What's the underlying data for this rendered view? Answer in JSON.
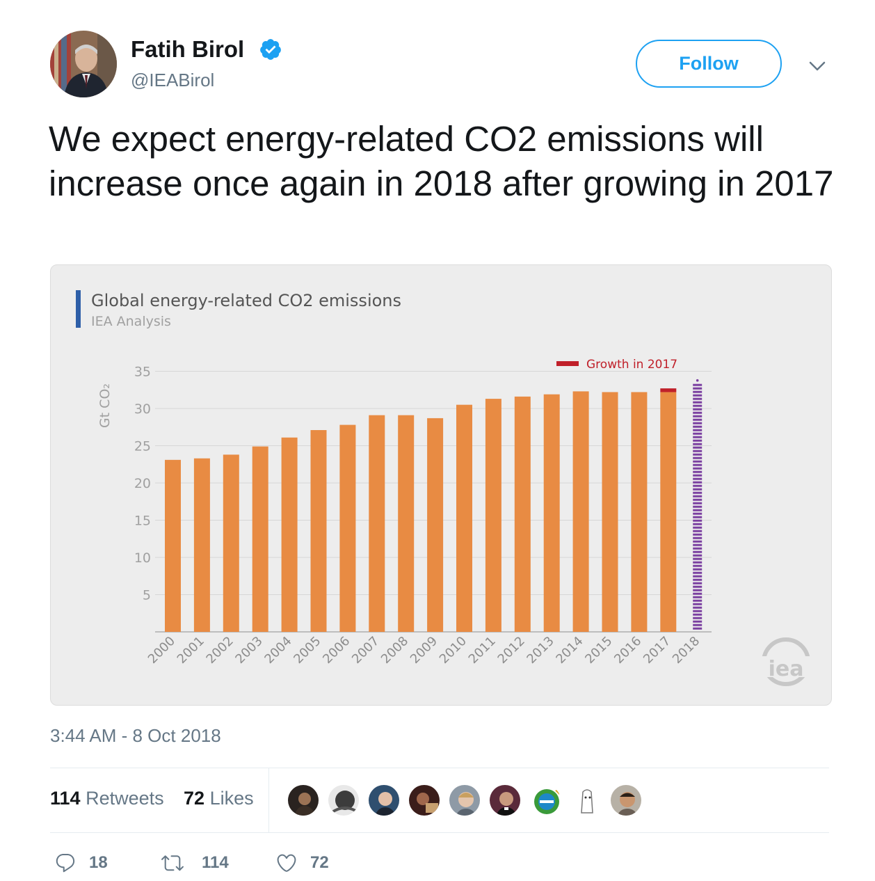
{
  "author": {
    "name": "Fatih Birol",
    "handle": "@IEABirol"
  },
  "follow_label": "Follow",
  "tweet_text": "We expect energy-related CO2 emissions will increase once again in 2018 after growing in 2017",
  "chart_data": {
    "type": "bar",
    "title": "Global energy-related CO2 emissions",
    "subtitle": "IEA Analysis",
    "ylabel": "Gt CO₂",
    "ylim": [
      0,
      35
    ],
    "yticks": [
      5,
      10,
      15,
      20,
      25,
      30,
      35
    ],
    "categories": [
      "2000",
      "2001",
      "2002",
      "2003",
      "2004",
      "2005",
      "2006",
      "2007",
      "2008",
      "2009",
      "2010",
      "2011",
      "2012",
      "2013",
      "2014",
      "2015",
      "2016",
      "2017",
      "2018"
    ],
    "series": [
      {
        "values": [
          23.1,
          23.3,
          23.8,
          24.9,
          26.1,
          27.1,
          27.8,
          29.1,
          29.1,
          28.7,
          30.5,
          31.3,
          31.6,
          31.9,
          32.3,
          32.2,
          32.2,
          32.2,
          null
        ],
        "color": "#e88b43"
      },
      {
        "name": "Growth in 2017",
        "values": [
          null,
          null,
          null,
          null,
          null,
          null,
          null,
          null,
          null,
          null,
          null,
          null,
          null,
          null,
          null,
          null,
          null,
          0.5,
          null
        ],
        "color": "#c0202a"
      }
    ],
    "projection_2018": {
      "value": 33.3,
      "color": "#7a3fa0",
      "style": "dotted"
    },
    "legend": "top-right",
    "grid": true,
    "logo": "iea"
  },
  "timestamp": "3:44 AM - 8 Oct 2018",
  "stats": {
    "retweets_count": "114",
    "retweets_label": "Retweets",
    "likes_count": "72",
    "likes_label": "Likes"
  },
  "actions": {
    "replies": "18",
    "retweets": "114",
    "likes": "72"
  },
  "colors": {
    "accent": "#1da1f2",
    "secondary_text": "#657786",
    "bar": "#e88b43",
    "growth": "#c0202a",
    "projection": "#7a3fa0",
    "title_marker": "#2e5fa8"
  }
}
